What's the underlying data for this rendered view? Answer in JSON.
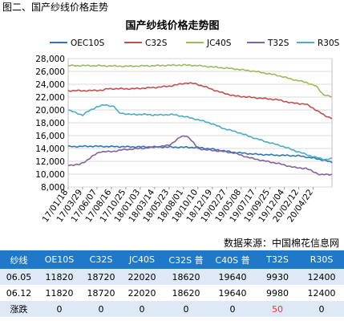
{
  "figure_caption": "图二、国产纱线价格走势",
  "source_note": "数据来源：中国棉花信息网",
  "chart_data": {
    "type": "line",
    "title": "国产纱线价格走势图",
    "ylim": [
      8000,
      28000
    ],
    "yticks": [
      8000,
      10000,
      12000,
      14000,
      16000,
      18000,
      20000,
      22000,
      24000,
      26000,
      28000
    ],
    "ytick_labels": [
      "8,000",
      "10,000",
      "12,000",
      "14,000",
      "16,000",
      "18,000",
      "20,000",
      "22,000",
      "24,000",
      "26,000",
      "28,000"
    ],
    "x_tick_labels": [
      "17/01/18",
      "17/03/29",
      "17/06/07",
      "17/08/16",
      "17/10/25",
      "18/01/03",
      "18/03/14",
      "18/05/23",
      "18/08/01",
      "18/10/10",
      "18/12/19",
      "19/02/27",
      "19/05/08",
      "19/07/17",
      "19/09/25",
      "19/12/04",
      "20/02/12",
      "20/04/22"
    ],
    "grid": "horizontal",
    "legend_position": "top",
    "series": [
      {
        "name": "OEC10S",
        "color": "#2e75b6",
        "keys": [
          [
            0,
            14300
          ],
          [
            5,
            14300
          ],
          [
            15,
            14350
          ],
          [
            30,
            14300
          ],
          [
            45,
            14250
          ],
          [
            60,
            14250
          ],
          [
            75,
            14200
          ],
          [
            90,
            14150
          ],
          [
            100,
            13900
          ],
          [
            115,
            13400
          ],
          [
            130,
            13100
          ],
          [
            145,
            12950
          ],
          [
            160,
            12850
          ],
          [
            170,
            12500
          ],
          [
            178,
            12150
          ],
          [
            183,
            11820
          ]
        ]
      },
      {
        "name": "C32S",
        "color": "#c0504d",
        "keys": [
          [
            0,
            23000
          ],
          [
            15,
            23000
          ],
          [
            25,
            23100
          ],
          [
            27,
            23300
          ],
          [
            45,
            23300
          ],
          [
            60,
            23500
          ],
          [
            70,
            23700
          ],
          [
            82,
            24200
          ],
          [
            88,
            24100
          ],
          [
            95,
            23600
          ],
          [
            105,
            22800
          ],
          [
            115,
            22200
          ],
          [
            130,
            21900
          ],
          [
            145,
            21600
          ],
          [
            155,
            21100
          ],
          [
            165,
            20900
          ],
          [
            172,
            20000
          ],
          [
            178,
            19100
          ],
          [
            183,
            18720
          ]
        ]
      },
      {
        "name": "JC40S",
        "color": "#9bbb59",
        "keys": [
          [
            0,
            26900
          ],
          [
            20,
            26900
          ],
          [
            40,
            26800
          ],
          [
            60,
            26900
          ],
          [
            80,
            27000
          ],
          [
            90,
            26900
          ],
          [
            100,
            26700
          ],
          [
            115,
            26400
          ],
          [
            130,
            26000
          ],
          [
            145,
            25400
          ],
          [
            155,
            24800
          ],
          [
            165,
            24300
          ],
          [
            172,
            23700
          ],
          [
            177,
            22400
          ],
          [
            183,
            22020
          ]
        ]
      },
      {
        "name": "T32S",
        "color": "#8064a2",
        "keys": [
          [
            0,
            11400
          ],
          [
            8,
            11500
          ],
          [
            12,
            12000
          ],
          [
            17,
            12800
          ],
          [
            22,
            13500
          ],
          [
            30,
            13500
          ],
          [
            38,
            13800
          ],
          [
            50,
            14000
          ],
          [
            60,
            14200
          ],
          [
            70,
            14500
          ],
          [
            78,
            15800
          ],
          [
            82,
            16000
          ],
          [
            85,
            15400
          ],
          [
            90,
            14000
          ],
          [
            95,
            13800
          ],
          [
            105,
            13600
          ],
          [
            115,
            13300
          ],
          [
            125,
            12600
          ],
          [
            135,
            12100
          ],
          [
            145,
            11700
          ],
          [
            152,
            11300
          ],
          [
            158,
            11000
          ],
          [
            165,
            10900
          ],
          [
            170,
            10400
          ],
          [
            175,
            9900
          ],
          [
            183,
            9980
          ]
        ]
      },
      {
        "name": "R30S",
        "color": "#4bacc6",
        "keys": [
          [
            0,
            20000
          ],
          [
            6,
            19500
          ],
          [
            10,
            19200
          ],
          [
            14,
            19800
          ],
          [
            20,
            20500
          ],
          [
            26,
            20800
          ],
          [
            32,
            20500
          ],
          [
            35,
            19600
          ],
          [
            42,
            19300
          ],
          [
            52,
            19300
          ],
          [
            62,
            19200
          ],
          [
            72,
            19300
          ],
          [
            80,
            19000
          ],
          [
            88,
            18600
          ],
          [
            98,
            18000
          ],
          [
            108,
            17100
          ],
          [
            118,
            16500
          ],
          [
            128,
            15700
          ],
          [
            138,
            15000
          ],
          [
            148,
            14400
          ],
          [
            158,
            13600
          ],
          [
            166,
            13000
          ],
          [
            172,
            12600
          ],
          [
            178,
            12300
          ],
          [
            183,
            12400
          ]
        ]
      }
    ]
  },
  "table": {
    "headers": [
      "纱线",
      "OE10S",
      "C32S",
      "JC40S",
      "C32S 普",
      "C40S 普",
      "T32S",
      "R30S"
    ],
    "rows": [
      [
        "06.05",
        "11820",
        "18720",
        "22020",
        "18620",
        "19640",
        "9930",
        "12400"
      ],
      [
        "06.12",
        "11820",
        "18720",
        "22020",
        "18620",
        "19640",
        "9980",
        "12400"
      ],
      [
        "涨跌",
        "0",
        "0",
        "0",
        "0",
        "0",
        "50",
        "0"
      ]
    ]
  }
}
